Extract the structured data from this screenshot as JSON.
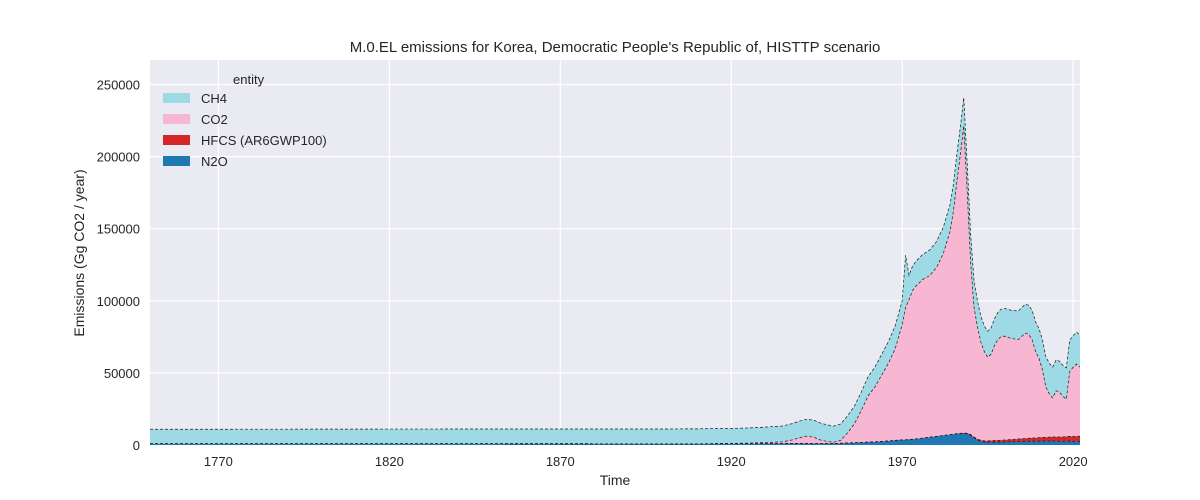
{
  "chart_data": {
    "type": "area",
    "stacked": true,
    "title": "M.0.EL emissions for Korea, Democratic People's Republic of, HISTTP scenario",
    "xlabel": "Time",
    "ylabel": "Emissions (Gg CO2 / year)",
    "xlim": [
      1750,
      2022
    ],
    "ylim": [
      0,
      267000
    ],
    "xticks": [
      1770,
      1820,
      1870,
      1920,
      1970,
      2020
    ],
    "yticks": [
      0,
      50000,
      100000,
      150000,
      200000,
      250000
    ],
    "grid": true,
    "legend": {
      "title": "entity",
      "placement": "top-left"
    },
    "x": [
      1750,
      1800,
      1850,
      1900,
      1910,
      1920,
      1925,
      1930,
      1935,
      1938,
      1940,
      1942,
      1944,
      1946,
      1948,
      1950,
      1952,
      1954,
      1956,
      1958,
      1960,
      1962,
      1964,
      1966,
      1968,
      1970,
      1971,
      1972,
      1973,
      1974,
      1976,
      1978,
      1980,
      1982,
      1984,
      1985,
      1986,
      1987,
      1988,
      1989,
      1990,
      1991,
      1992,
      1993,
      1994,
      1995,
      1996,
      1997,
      1998,
      1999,
      2000,
      2002,
      2004,
      2005,
      2006,
      2007,
      2008,
      2009,
      2010,
      2011,
      2012,
      2013,
      2014,
      2015,
      2016,
      2017,
      2018,
      2019,
      2020,
      2021,
      2022
    ],
    "series": [
      {
        "name": "N2O",
        "color": "#1f77b4",
        "values": [
          900,
          900,
          900,
          800,
          800,
          900,
          900,
          1000,
          1000,
          1100,
          1100,
          1100,
          1000,
          1000,
          1000,
          1100,
          1200,
          1400,
          1600,
          1800,
          2000,
          2200,
          2500,
          2800,
          3200,
          3600,
          3600,
          3800,
          4000,
          4200,
          4800,
          5400,
          6000,
          6600,
          7200,
          7500,
          7800,
          7900,
          8000,
          7800,
          6800,
          5000,
          3500,
          2600,
          2100,
          2000,
          2000,
          2000,
          2000,
          2000,
          2100,
          2200,
          2400,
          2500,
          2500,
          2600,
          2700,
          2600,
          2700,
          2800,
          2700,
          2800,
          2800,
          2700,
          2600,
          2500,
          2600,
          2700,
          2500,
          2600,
          2500
        ]
      },
      {
        "name": "HFCS (AR6GWP100)",
        "color": "#d62728",
        "values": [
          0,
          0,
          0,
          0,
          0,
          0,
          0,
          0,
          0,
          0,
          0,
          0,
          0,
          0,
          0,
          0,
          0,
          0,
          0,
          0,
          0,
          0,
          0,
          0,
          0,
          0,
          0,
          0,
          0,
          0,
          0,
          0,
          0,
          0,
          0,
          0,
          100,
          200,
          300,
          400,
          500,
          500,
          600,
          700,
          800,
          900,
          1000,
          1100,
          1200,
          1300,
          1400,
          1600,
          1800,
          1900,
          2000,
          2100,
          2200,
          2300,
          2400,
          2500,
          2600,
          2700,
          2800,
          2900,
          3000,
          3100,
          3200,
          3300,
          3400,
          3500,
          3600
        ]
      },
      {
        "name": "CO2",
        "color": "#f7b6d2",
        "values": [
          0,
          0,
          0,
          0,
          0,
          200,
          400,
          700,
          1200,
          2500,
          4000,
          5000,
          4500,
          2500,
          1500,
          800,
          2000,
          7000,
          13000,
          22000,
          32000,
          38000,
          46000,
          54000,
          64000,
          80000,
          92000,
          97000,
          103000,
          106000,
          110000,
          112000,
          117000,
          126000,
          141000,
          155000,
          175000,
          193000,
          213000,
          168000,
          120000,
          90000,
          78000,
          68000,
          62000,
          58000,
          60000,
          66000,
          70000,
          72000,
          72000,
          70000,
          69000,
          71000,
          73000,
          72000,
          68000,
          60000,
          55000,
          47000,
          35000,
          30000,
          27000,
          32000,
          31000,
          28000,
          26000,
          45000,
          48000,
          50000,
          48000
        ]
      },
      {
        "name": "CH4",
        "color": "#9edae5",
        "values": [
          10000,
          10100,
          10200,
          10300,
          10400,
          10400,
          10500,
          10700,
          11000,
          11300,
          11500,
          11700,
          11800,
          11800,
          11500,
          11200,
          11400,
          11800,
          12200,
          12700,
          13200,
          13800,
          14400,
          15100,
          15800,
          16500,
          36000,
          16800,
          17000,
          17200,
          17400,
          17700,
          18000,
          18300,
          18600,
          18800,
          19100,
          19300,
          19500,
          19400,
          19000,
          18500,
          18000,
          17900,
          17800,
          18000,
          18200,
          18500,
          18800,
          19000,
          19200,
          19500,
          19800,
          20000,
          20100,
          20200,
          20400,
          20500,
          20700,
          20800,
          21000,
          21200,
          21300,
          21400,
          21500,
          21600,
          21700,
          21800,
          22000,
          22100,
          22200
        ]
      }
    ]
  }
}
